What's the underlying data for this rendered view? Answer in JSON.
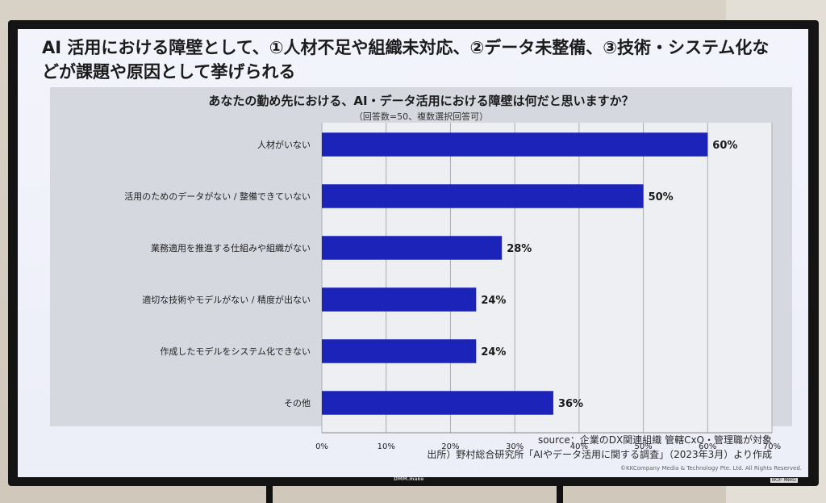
{
  "headline": "AI 活用における障壁として、①人材不足や組織未対応、②データ未整備、③技術・システム化などが課題や原因として挙げられる",
  "chart_data": {
    "type": "bar",
    "orientation": "horizontal",
    "title": "あなたの勤め先における、AI・データ活用における障壁は何だと思いますか？",
    "subtitle": "（回答数=50、複数選択回答可）",
    "categories": [
      "人材がいない",
      "活用のためのデータがない / 整備できていない",
      "業務適用を推進する仕組みや組織がない",
      "適切な技術やモデルがない / 精度が出ない",
      "作成したモデルをシステム化できない",
      "その他"
    ],
    "values": [
      60,
      50,
      28,
      24,
      24,
      36
    ],
    "value_labels": [
      "60%",
      "50%",
      "28%",
      "24%",
      "24%",
      "36%"
    ],
    "xlim": [
      0,
      70
    ],
    "x_ticks": [
      "0%",
      "10%",
      "20%",
      "30%",
      "40%",
      "50%",
      "60%",
      "70%"
    ],
    "grid": true,
    "bar_color": "#1b23b8"
  },
  "source_line1": "source：企業のDX関連組織 管轄CxO・管理職が対象",
  "source_line2": "出所）野村総合研究所「AIやデータ活用に関する調査」（2023年3月）より作成",
  "copyright": "©KKCompany Media & Technology Pte. Ltd. All Rights Reserved.",
  "tv_brand": "DMM.make",
  "tv_model": "KKJP-MN002"
}
